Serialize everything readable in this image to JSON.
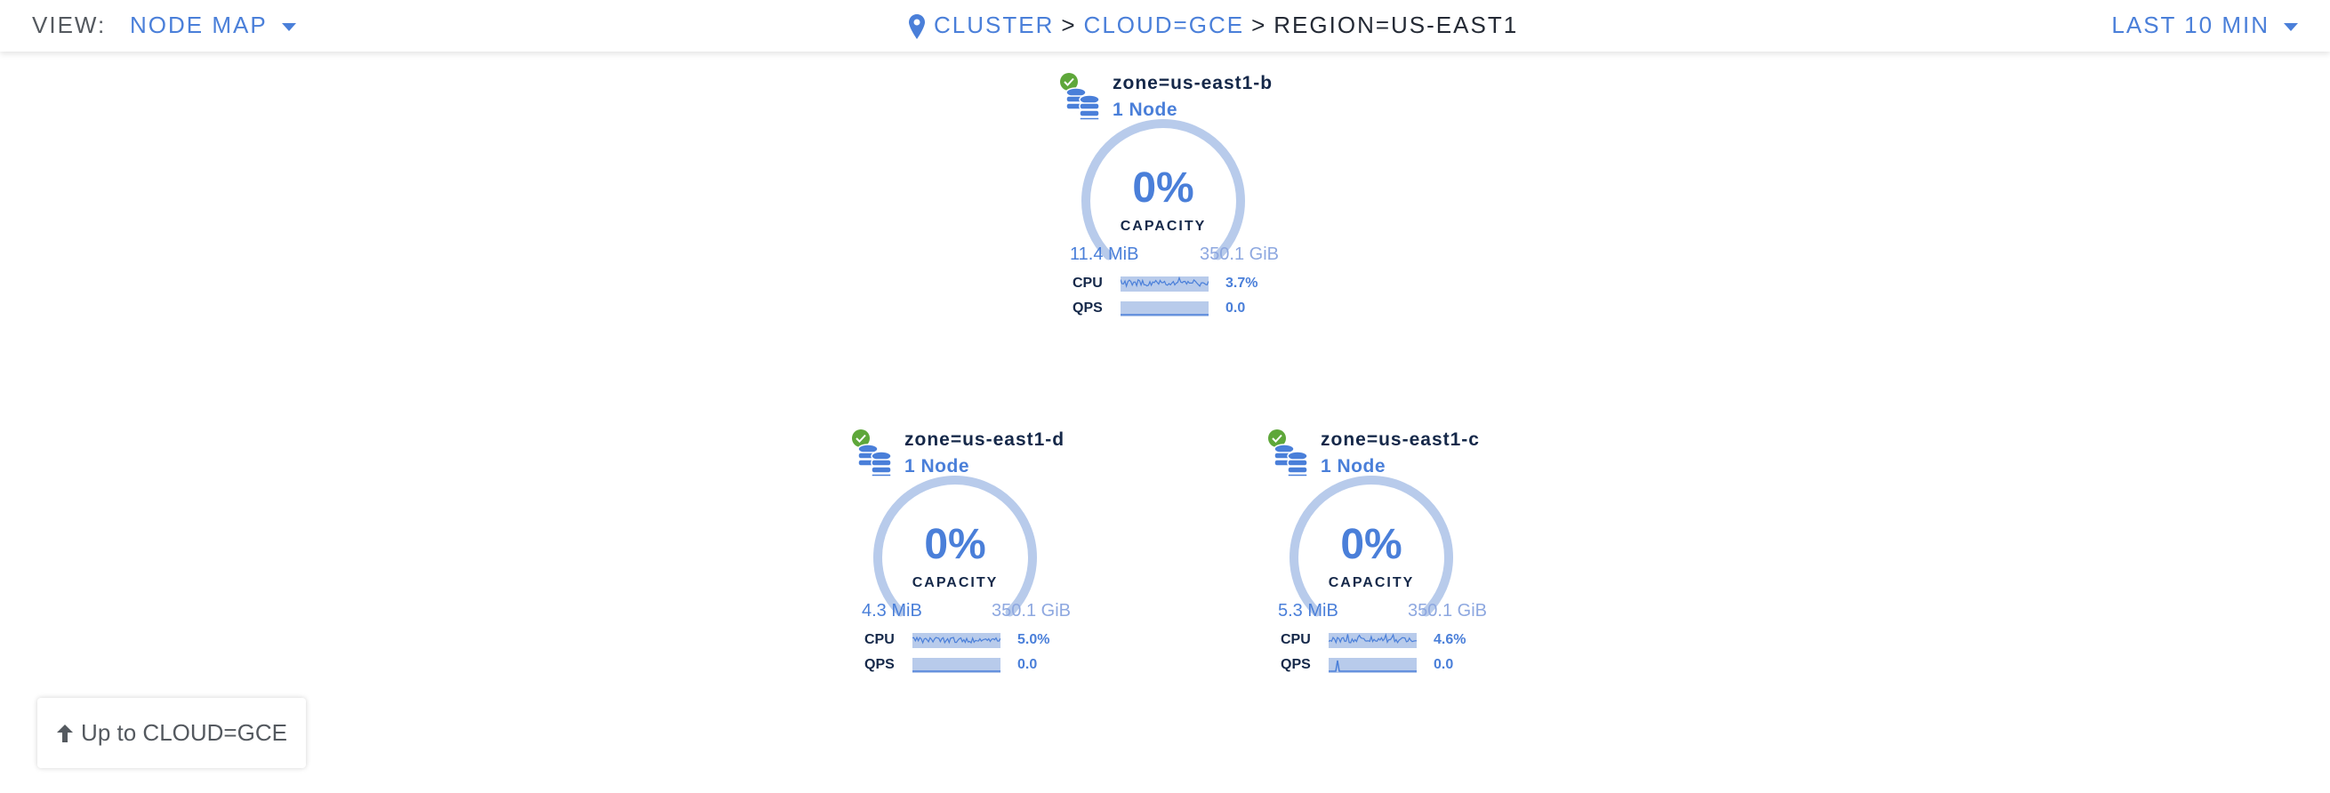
{
  "header": {
    "view_label": "VIEW:",
    "view_value": "NODE MAP",
    "breadcrumb": [
      "CLUSTER",
      "CLOUD=GCE",
      "REGION=US-EAST1"
    ],
    "breadcrumb_separator": ">",
    "time_range": "LAST 10 MIN",
    "icon": "map-pin-icon"
  },
  "colors": {
    "accent": "#4a7fd9",
    "gauge": "#b8cbeb",
    "healthy": "#5ea73a",
    "text_dark": "#152849"
  },
  "localities": [
    {
      "title": "zone=us-east1-b",
      "node_count": "1 Node",
      "status": "healthy",
      "capacity_pct": 0,
      "capacity_label": "0%",
      "capacity_caption": "CAPACITY",
      "used": "11.4 MiB",
      "total": "350.1 GiB",
      "cpu_label": "CPU",
      "cpu_value": "3.7%",
      "qps_label": "QPS",
      "qps_value": "0.0"
    },
    {
      "title": "zone=us-east1-d",
      "node_count": "1 Node",
      "status": "healthy",
      "capacity_pct": 0,
      "capacity_label": "0%",
      "capacity_caption": "CAPACITY",
      "used": "4.3 MiB",
      "total": "350.1 GiB",
      "cpu_label": "CPU",
      "cpu_value": "5.0%",
      "qps_label": "QPS",
      "qps_value": "0.0"
    },
    {
      "title": "zone=us-east1-c",
      "node_count": "1 Node",
      "status": "healthy",
      "capacity_pct": 0,
      "capacity_label": "0%",
      "capacity_caption": "CAPACITY",
      "used": "5.3 MiB",
      "total": "350.1 GiB",
      "cpu_label": "CPU",
      "cpu_value": "4.6%",
      "qps_label": "QPS",
      "qps_value": "0.0"
    }
  ],
  "up_button": {
    "label": "Up to CLOUD=GCE",
    "icon": "arrow-up-icon"
  }
}
